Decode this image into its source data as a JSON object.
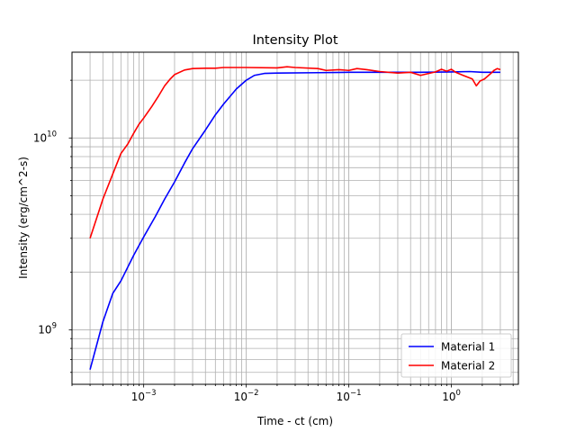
{
  "chart_data": {
    "type": "line",
    "title": "Intensity Plot",
    "xlabel": "Time - ct (cm)",
    "ylabel": "Intensity (erg/cm^2-s)",
    "xscale": "log",
    "yscale": "log",
    "xlim": [
      0.0002,
      4.5
    ],
    "ylim": [
      520000000,
      28000000000
    ],
    "grid": "major and minor, both axes",
    "x_ticks": [
      {
        "value": 0.001,
        "base": "10",
        "exp": "−3"
      },
      {
        "value": 0.01,
        "base": "10",
        "exp": "−2"
      },
      {
        "value": 0.1,
        "base": "10",
        "exp": "−1"
      },
      {
        "value": 1,
        "base": "10",
        "exp": "0"
      }
    ],
    "y_ticks": [
      {
        "value": 1000000000,
        "base": "10",
        "exp": "9"
      },
      {
        "value": 10000000000,
        "base": "10",
        "exp": "10"
      }
    ],
    "legend": {
      "position": "lower right"
    },
    "series": [
      {
        "name": "Material 1",
        "color": "#0000ff",
        "points": [
          [
            0.0003,
            620000000
          ],
          [
            0.0004,
            1100000000
          ],
          [
            0.0005,
            1550000000
          ],
          [
            0.0006,
            1800000000
          ],
          [
            0.0008,
            2450000000
          ],
          [
            0.001,
            3050000000
          ],
          [
            0.0013,
            3900000000
          ],
          [
            0.0016,
            4800000000
          ],
          [
            0.002,
            5900000000
          ],
          [
            0.0025,
            7400000000
          ],
          [
            0.003,
            8800000000
          ],
          [
            0.004,
            11000000000
          ],
          [
            0.005,
            13200000000
          ],
          [
            0.006,
            15000000000
          ],
          [
            0.008,
            18000000000
          ],
          [
            0.01,
            20000000000
          ],
          [
            0.012,
            21200000000
          ],
          [
            0.015,
            21700000000
          ],
          [
            0.02,
            21800000000
          ],
          [
            0.05,
            21900000000
          ],
          [
            0.1,
            22000000000
          ],
          [
            0.3,
            22000000000
          ],
          [
            0.5,
            22000000000
          ],
          [
            1,
            22100000000
          ],
          [
            1.5,
            22200000000
          ],
          [
            2,
            22000000000
          ],
          [
            3,
            22000000000
          ]
        ]
      },
      {
        "name": "Material 2",
        "color": "#ff0000",
        "points": [
          [
            0.0003,
            3000000000
          ],
          [
            0.0004,
            4800000000
          ],
          [
            0.0005,
            6500000000
          ],
          [
            0.0006,
            8300000000
          ],
          [
            0.0007,
            9300000000
          ],
          [
            0.0008,
            10600000000
          ],
          [
            0.0009,
            11800000000
          ],
          [
            0.001,
            12700000000
          ],
          [
            0.0012,
            14600000000
          ],
          [
            0.0014,
            16600000000
          ],
          [
            0.0016,
            18700000000
          ],
          [
            0.0018,
            20200000000
          ],
          [
            0.002,
            21400000000
          ],
          [
            0.0025,
            22600000000
          ],
          [
            0.003,
            23000000000
          ],
          [
            0.004,
            23100000000
          ],
          [
            0.005,
            23100000000
          ],
          [
            0.006,
            23300000000
          ],
          [
            0.01,
            23300000000
          ],
          [
            0.02,
            23200000000
          ],
          [
            0.025,
            23500000000
          ],
          [
            0.03,
            23300000000
          ],
          [
            0.05,
            23000000000
          ],
          [
            0.06,
            22500000000
          ],
          [
            0.08,
            22700000000
          ],
          [
            0.1,
            22500000000
          ],
          [
            0.12,
            23000000000
          ],
          [
            0.15,
            22700000000
          ],
          [
            0.2,
            22200000000
          ],
          [
            0.3,
            21800000000
          ],
          [
            0.4,
            22000000000
          ],
          [
            0.5,
            21200000000
          ],
          [
            0.6,
            21700000000
          ],
          [
            0.7,
            22100000000
          ],
          [
            0.8,
            22800000000
          ],
          [
            0.9,
            22300000000
          ],
          [
            1,
            22800000000
          ],
          [
            1.1,
            22000000000
          ],
          [
            1.3,
            21200000000
          ],
          [
            1.6,
            20300000000
          ],
          [
            1.75,
            18700000000
          ],
          [
            1.9,
            19800000000
          ],
          [
            2.1,
            20300000000
          ],
          [
            2.4,
            21600000000
          ],
          [
            2.6,
            22500000000
          ],
          [
            2.8,
            23000000000
          ],
          [
            3,
            22700000000
          ]
        ]
      }
    ]
  }
}
